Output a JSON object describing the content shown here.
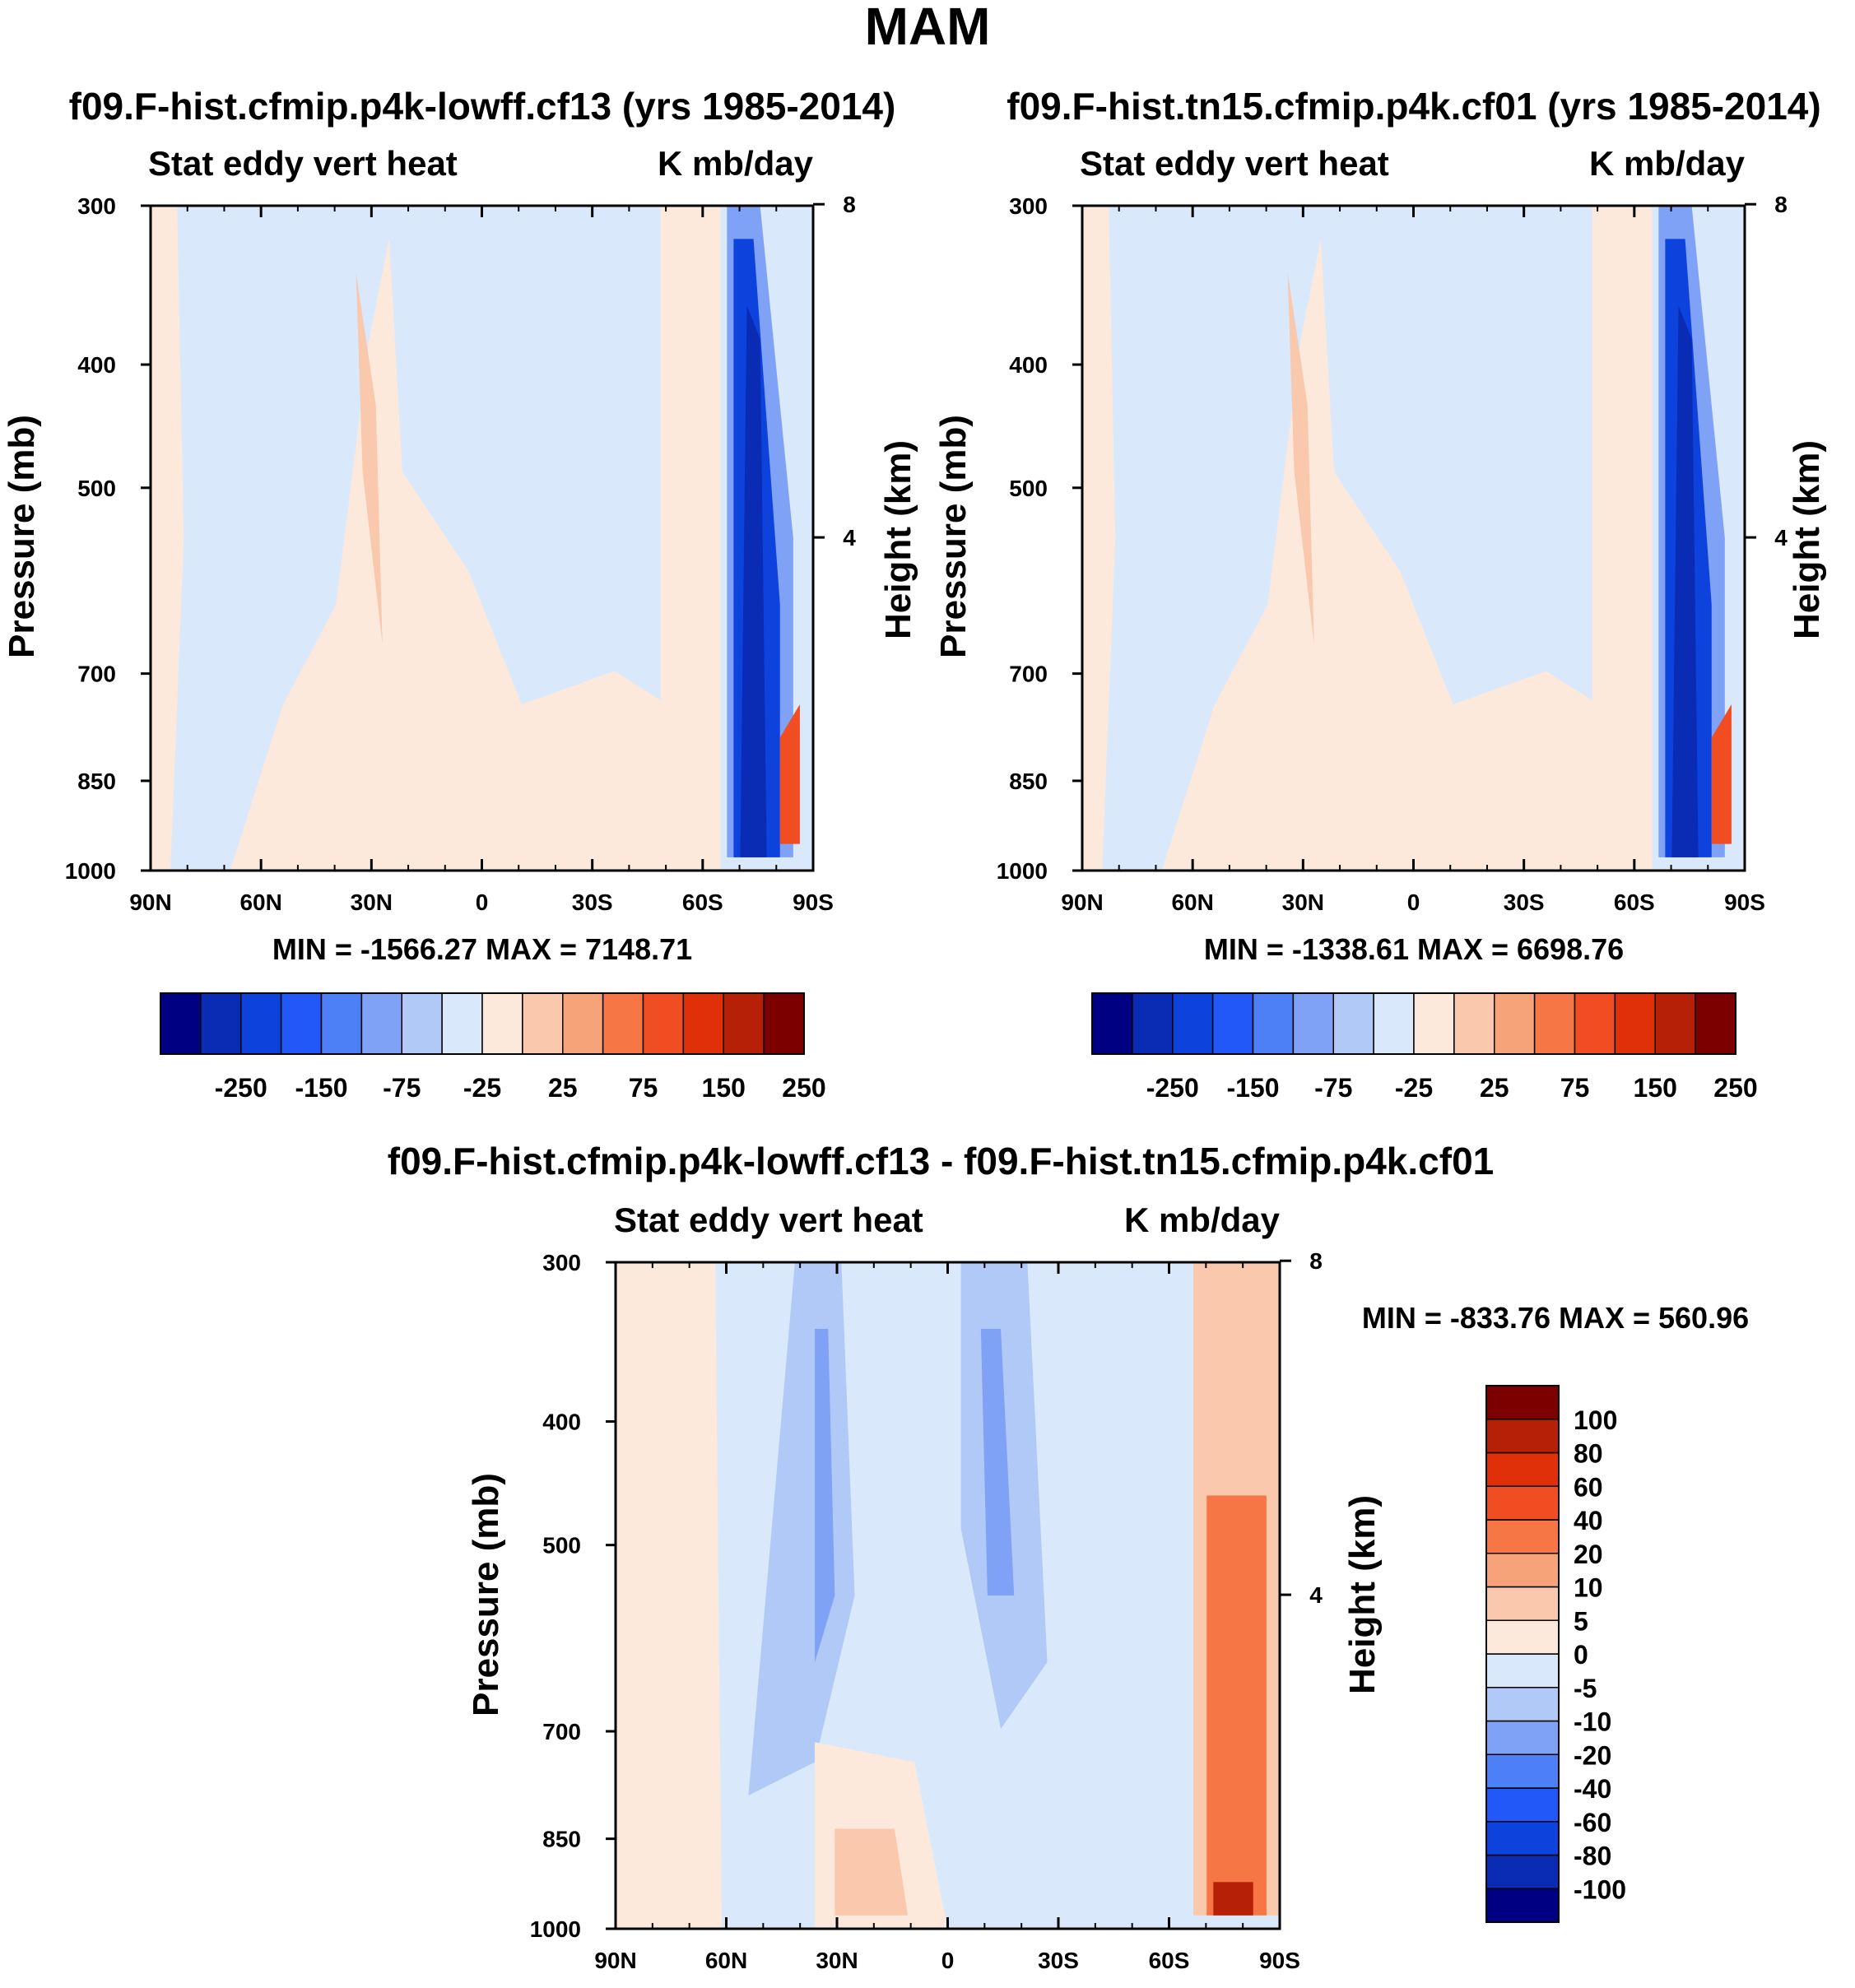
{
  "figure": {
    "title": "MAM"
  },
  "colors": {
    "scale": [
      "#000083",
      "#0a2cb5",
      "#0d42dd",
      "#2158f7",
      "#4d7ff6",
      "#7fa1f6",
      "#b0c9f6",
      "#d9e9fb",
      "#fce9dc",
      "#f9c8ad",
      "#f7a37a",
      "#f67646",
      "#f14d22",
      "#e0300a",
      "#b52007",
      "#7d0000"
    ],
    "axis": "#000000"
  },
  "panels": [
    {
      "title": "f09.F-hist.cfmip.p4k-lowff.cf13 (yrs 1985-2014)",
      "subtitle_left": "Stat eddy vert heat",
      "subtitle_right": "K mb/day",
      "y_label": "Pressure (mb)",
      "y2_label": "Height (km)",
      "minmax": "MIN = -1566.27   MAX = 7148.71"
    },
    {
      "title": "f09.F-hist.tn15.cfmip.p4k.cf01 (yrs 1985-2014)",
      "subtitle_left": "Stat eddy vert heat",
      "subtitle_right": "K mb/day",
      "y_label": "Pressure (mb)",
      "y2_label": "Height (km)",
      "minmax": "MIN = -1338.61   MAX = 6698.76"
    },
    {
      "title": "f09.F-hist.cfmip.p4k-lowff.cf13 - f09.F-hist.tn15.cfmip.p4k.cf01",
      "subtitle_left": "Stat eddy vert heat",
      "subtitle_right": "K mb/day",
      "y_label": "Pressure (mb)",
      "y2_label": "Height (km)",
      "minmax": "MIN = -833.76   MAX = 560.96"
    }
  ],
  "chart_data": [
    {
      "type": "heatmap",
      "title": "f09.F-hist.cfmip.p4k-lowff.cf13 (yrs 1985-2014)",
      "variable": "Stat eddy vert heat",
      "units": "K mb/day",
      "x_ticks": [
        "90N",
        "60N",
        "30N",
        "0",
        "30S",
        "60S",
        "90S"
      ],
      "y_ticks": [
        300,
        400,
        500,
        700,
        850,
        1000
      ],
      "y_scale": "log",
      "ylim": [
        1000,
        300
      ],
      "y2_ticks": [
        8,
        4
      ],
      "min": -1566.27,
      "max": 7148.71,
      "colorbar_labels": [
        "-250",
        "-150",
        "-75",
        "-25",
        "25",
        "75",
        "150",
        "250"
      ]
    },
    {
      "type": "heatmap",
      "title": "f09.F-hist.tn15.cfmip.p4k.cf01 (yrs 1985-2014)",
      "variable": "Stat eddy vert heat",
      "units": "K mb/day",
      "x_ticks": [
        "90N",
        "60N",
        "30N",
        "0",
        "30S",
        "60S",
        "90S"
      ],
      "y_ticks": [
        300,
        400,
        500,
        700,
        850,
        1000
      ],
      "y_scale": "log",
      "ylim": [
        1000,
        300
      ],
      "y2_ticks": [
        8,
        4
      ],
      "min": -1338.61,
      "max": 6698.76,
      "colorbar_labels": [
        "-250",
        "-150",
        "-75",
        "-25",
        "25",
        "75",
        "150",
        "250"
      ]
    },
    {
      "type": "heatmap",
      "title": "f09.F-hist.cfmip.p4k-lowff.cf13 - f09.F-hist.tn15.cfmip.p4k.cf01",
      "variable": "Stat eddy vert heat",
      "units": "K mb/day",
      "x_ticks": [
        "90N",
        "60N",
        "30N",
        "0",
        "30S",
        "60S",
        "90S"
      ],
      "y_ticks": [
        300,
        400,
        500,
        700,
        850,
        1000
      ],
      "y_scale": "log",
      "ylim": [
        1000,
        300
      ],
      "y2_ticks": [
        8,
        4
      ],
      "min": -833.76,
      "max": 560.96,
      "colorbar_labels": [
        "100",
        "80",
        "60",
        "40",
        "20",
        "10",
        "5",
        "0",
        "-5",
        "-10",
        "-20",
        "-40",
        "-60",
        "-80",
        "-100"
      ]
    }
  ]
}
